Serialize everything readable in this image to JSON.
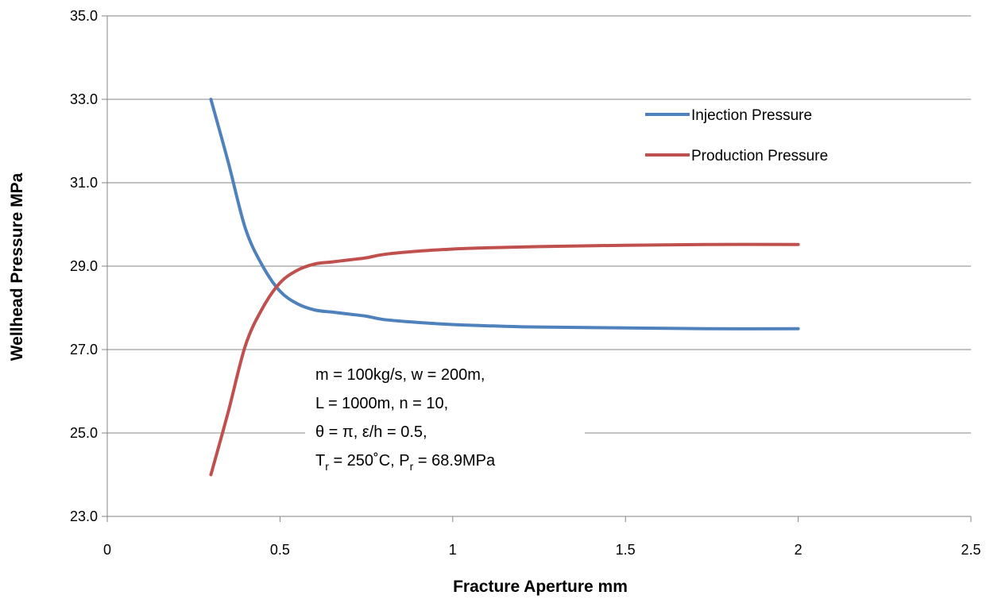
{
  "chart_data": {
    "type": "line",
    "title": "",
    "xlabel": "Fracture Aperture mm",
    "ylabel": "Wellhead Pressure MPa",
    "xlim": [
      0,
      2.5
    ],
    "ylim": [
      23.0,
      35.0
    ],
    "xticks": [
      0,
      0.5,
      1,
      1.5,
      2,
      2.5
    ],
    "xtick_labels": [
      "0",
      "0.5",
      "1",
      "1.5",
      "2",
      "2.5"
    ],
    "yticks": [
      23,
      25,
      27,
      29,
      31,
      33,
      35
    ],
    "ytick_labels": [
      "23.0",
      "25.0",
      "27.0",
      "29.0",
      "31.0",
      "33.0",
      "35.0"
    ],
    "grid": "horizontal",
    "legend_position": "top-right",
    "series": [
      {
        "name": "Injection Pressure",
        "color": "#4F81BD",
        "x": [
          0.3,
          0.35,
          0.4,
          0.45,
          0.5,
          0.55,
          0.6,
          0.65,
          0.7,
          0.75,
          0.8,
          0.9,
          1.0,
          1.1,
          1.25,
          1.5,
          1.75,
          2.0
        ],
        "y": [
          33.0,
          31.5,
          29.9,
          29.0,
          28.4,
          28.1,
          27.95,
          27.9,
          27.85,
          27.8,
          27.72,
          27.65,
          27.6,
          27.57,
          27.54,
          27.52,
          27.5,
          27.5
        ]
      },
      {
        "name": "Production Pressure",
        "color": "#C0504D",
        "x": [
          0.3,
          0.35,
          0.4,
          0.45,
          0.5,
          0.55,
          0.6,
          0.65,
          0.7,
          0.75,
          0.8,
          0.9,
          1.0,
          1.1,
          1.25,
          1.5,
          1.75,
          2.0
        ],
        "y": [
          24.0,
          25.5,
          27.1,
          28.0,
          28.6,
          28.9,
          29.05,
          29.1,
          29.15,
          29.2,
          29.28,
          29.36,
          29.41,
          29.44,
          29.47,
          29.5,
          29.52,
          29.52
        ]
      }
    ],
    "annotation": {
      "line1": "m = 100kg/s, w = 200m,",
      "line2": "L = 1000m, n = 10,",
      "line3": "θ = π, ε/h = 0.5,",
      "line4_t": "T",
      "line4_t_sub": "r",
      "line4_mid": " = 250˚C, P",
      "line4_p_sub": "r",
      "line4_end": " = 68.9MPa"
    }
  }
}
